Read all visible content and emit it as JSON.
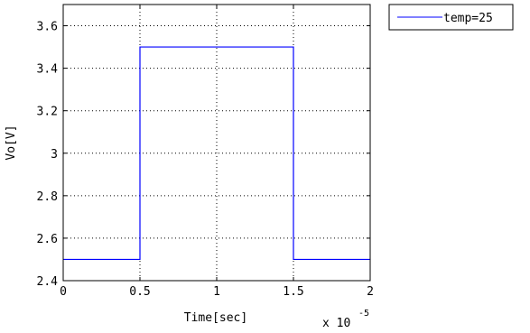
{
  "chart_data": {
    "type": "line",
    "xlabel": "Time[sec]",
    "ylabel": "Vo[V]",
    "x_exponent_label": "x 10",
    "x_exponent_power": "-5",
    "xlim": [
      0,
      2
    ],
    "ylim": [
      2.4,
      3.7
    ],
    "x_ticks": [
      0,
      0.5,
      1,
      1.5,
      2
    ],
    "x_tick_labels": [
      "0",
      "0.5",
      "1",
      "1.5",
      "2"
    ],
    "y_ticks": [
      2.4,
      2.6,
      2.8,
      3,
      3.2,
      3.4,
      3.6
    ],
    "y_tick_labels": [
      "2.4",
      "2.6",
      "2.8",
      "3",
      "3.2",
      "3.4",
      "3.6"
    ],
    "grid": true,
    "grid_style": "dotted",
    "legend_placement": "outside-top-right",
    "series": [
      {
        "name": "temp=25",
        "color": "#0000ff",
        "x": [
          0,
          0.5,
          0.5,
          1.5,
          1.5,
          2
        ],
        "y": [
          2.5,
          2.5,
          3.5,
          3.5,
          2.5,
          2.5
        ]
      }
    ]
  }
}
